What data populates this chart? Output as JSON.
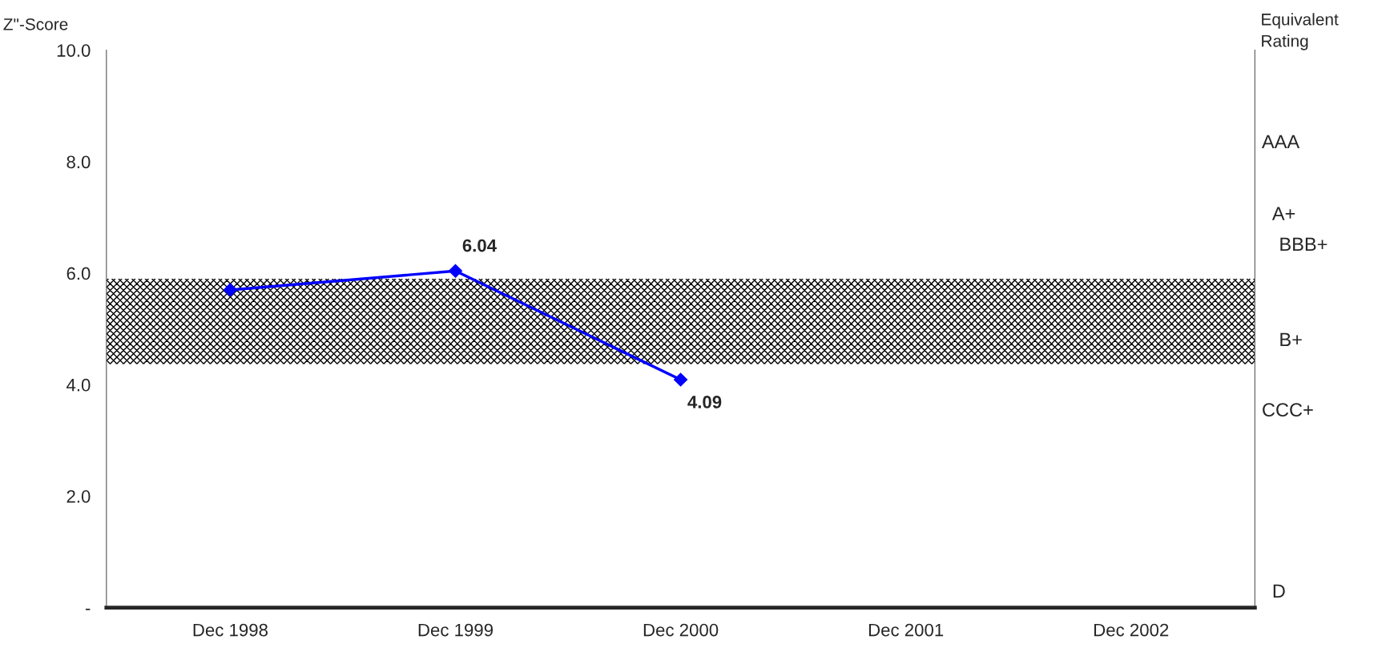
{
  "chart_data": {
    "type": "line",
    "ylabel": "Z\"-Score",
    "y2label": "Equivalent\nRating",
    "categories": [
      "Dec 1998",
      "Dec 1999",
      "Dec 2000",
      "Dec 2001",
      "Dec 2002"
    ],
    "series": [
      {
        "color": "#0000ff",
        "values": [
          5.7,
          6.04,
          4.09,
          null,
          null
        ],
        "value_labels": [
          null,
          "6.04",
          "4.09",
          null,
          null
        ]
      }
    ],
    "ylim": [
      0,
      10
    ],
    "yticks": [
      {
        "value": 0,
        "label": "-"
      },
      {
        "value": 2,
        "label": "2.0"
      },
      {
        "value": 4,
        "label": "4.0"
      },
      {
        "value": 6,
        "label": "6.0"
      },
      {
        "value": 8,
        "label": "8.0"
      },
      {
        "value": 10,
        "label": "10.0"
      }
    ],
    "annotations": [
      "AAA",
      "A+",
      "BBB+",
      "B+",
      "CCC+",
      "D"
    ],
    "bands": [
      {
        "axis": "y",
        "from": 4.37,
        "to": 5.9,
        "color": "#000000"
      }
    ],
    "marker": "diamond",
    "line_style": "solid",
    "grid": false,
    "legend": false
  }
}
